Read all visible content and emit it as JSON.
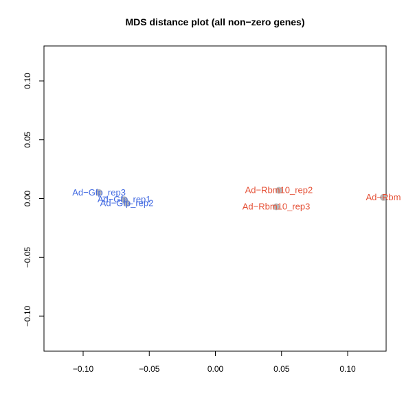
{
  "chart_data": {
    "type": "scatter",
    "title": "MDS distance plot (all non−zero genes)",
    "xlabel": "",
    "ylabel": "",
    "xlim": [
      -0.13,
      0.128
    ],
    "ylim": [
      -0.13,
      0.13
    ],
    "x_ticks": [
      -0.1,
      -0.05,
      0.0,
      0.05,
      0.1
    ],
    "x_tick_labels": [
      "−0.10",
      "−0.05",
      "0.00",
      "0.05",
      "0.10"
    ],
    "y_ticks": [
      -0.1,
      -0.05,
      0.0,
      0.05,
      0.1
    ],
    "y_tick_labels": [
      "−0.10",
      "−0.05",
      "0.00",
      "0.05",
      "0.10"
    ],
    "grid": false,
    "series": [
      {
        "name": "Ad-Gfp",
        "color": "#4169e1",
        "points": [
          {
            "label": "Ad−Gfp_rep3",
            "x": -0.088,
            "y": 0.005
          },
          {
            "label": "Ad−Gfp_rep1",
            "x": -0.069,
            "y": -0.001
          },
          {
            "label": "Ad−Gfp_rep2",
            "x": -0.067,
            "y": -0.004
          }
        ]
      },
      {
        "name": "Ad-Rbm10",
        "color": "#e55036",
        "points": [
          {
            "label": "Ad−Rbm10_rep2",
            "x": 0.048,
            "y": 0.007
          },
          {
            "label": "Ad−Rbm10_rep3",
            "x": 0.046,
            "y": -0.007
          },
          {
            "label": "Ad−Rbm",
            "x": 0.127,
            "y": 0.001
          }
        ]
      }
    ],
    "point_color": "#b0b0b0"
  }
}
